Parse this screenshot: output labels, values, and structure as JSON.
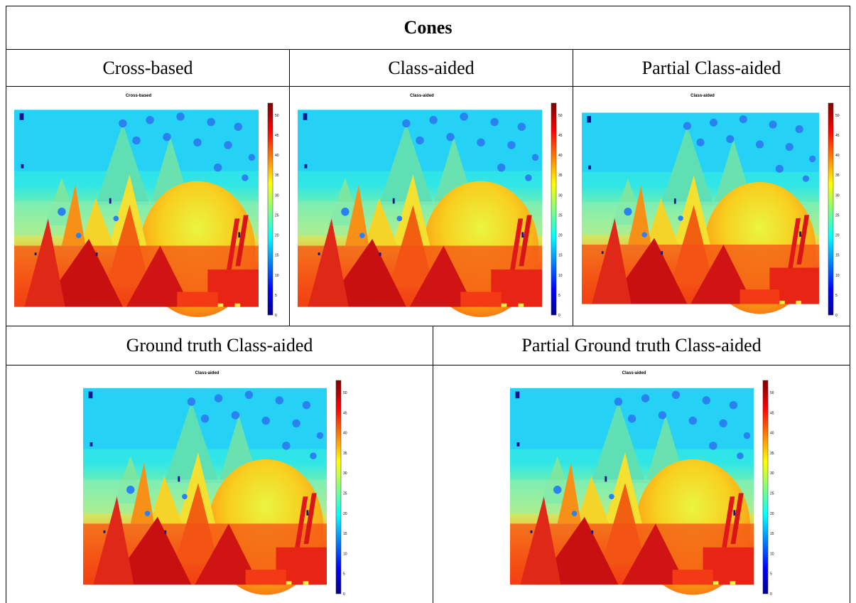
{
  "table": {
    "title": "Cones",
    "row1_headers": [
      "Cross-based",
      "Class-aided",
      "Partial Class-aided"
    ],
    "row2_headers": [
      "Ground truth Class-aided",
      "Partial Ground truth Class-aided"
    ]
  },
  "figures": [
    {
      "plot_title": "Cross-based"
    },
    {
      "plot_title": "Class-aided"
    },
    {
      "plot_title": "Class-aided"
    },
    {
      "plot_title": "Class-aided"
    },
    {
      "plot_title": "Class-aided"
    }
  ],
  "colorbar": {
    "colormap": "jet",
    "ticks": [
      "50",
      "45",
      "40",
      "35",
      "30",
      "25",
      "20",
      "15",
      "10",
      "5",
      "0"
    ],
    "range": [
      0,
      53
    ]
  }
}
